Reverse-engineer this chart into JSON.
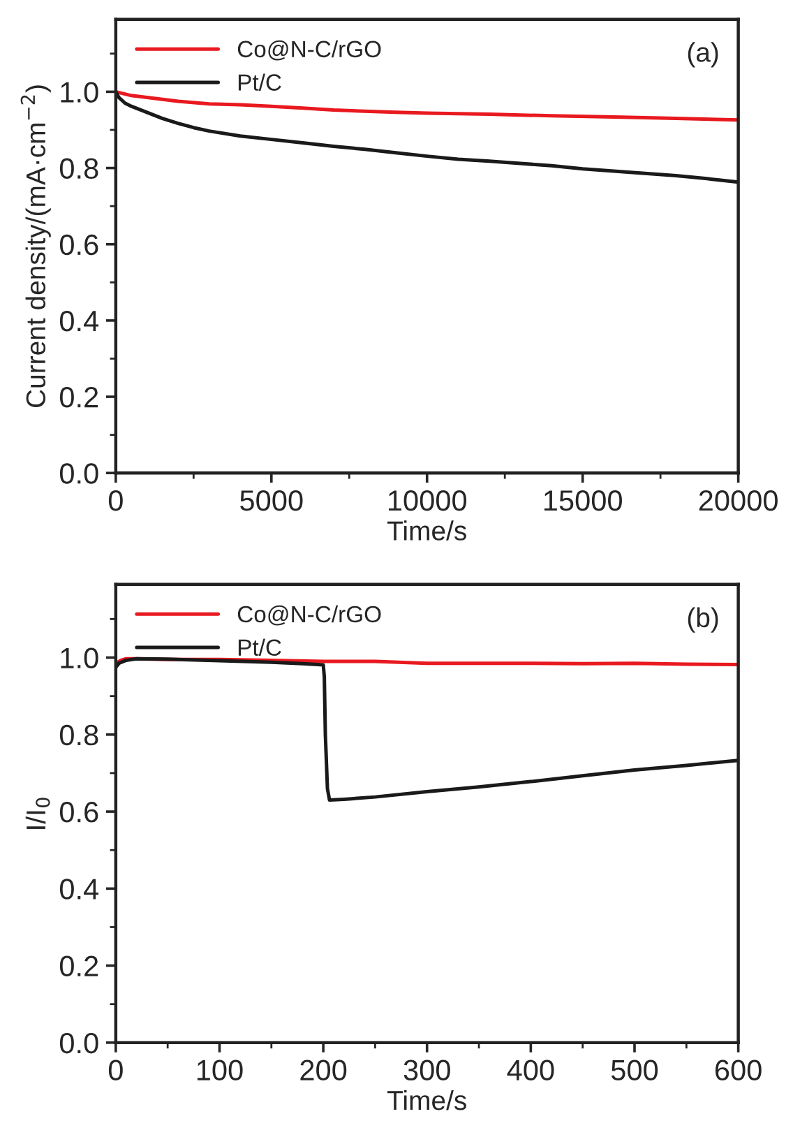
{
  "chart_data": [
    {
      "type": "line",
      "xlabel": "Time/s",
      "ylabel": "Current density/(mA·cm$^{−2}$)",
      "annotations": [
        "(a)"
      ],
      "legend": "top left",
      "xlim": [
        0,
        20000
      ],
      "ylim": [
        0,
        1.19
      ],
      "xticks": [
        0,
        5000,
        10000,
        15000,
        20000
      ],
      "yticks": [
        {
          "value": 0,
          "label": "0.0"
        },
        {
          "value": 0.2,
          "label": "0.2"
        },
        {
          "value": 0.4,
          "label": "0.4"
        },
        {
          "value": 0.6,
          "label": "0.6"
        },
        {
          "value": 0.8,
          "label": "0.8"
        },
        {
          "value": 1,
          "label": "1.0"
        }
      ],
      "grid": false,
      "series": [
        {
          "name": "Co@N-C/rGO",
          "color": "#e8191f",
          "x": [
            0,
            500,
            1000,
            2000,
            3000,
            4000,
            5000,
            6000,
            7000,
            8000,
            9000,
            10000,
            12000,
            14000,
            16000,
            18000,
            20000
          ],
          "values": [
            1.0,
            0.99,
            0.985,
            0.975,
            0.968,
            0.966,
            0.962,
            0.957,
            0.952,
            0.949,
            0.946,
            0.944,
            0.941,
            0.937,
            0.934,
            0.93,
            0.926
          ]
        },
        {
          "name": "Pt/C",
          "color": "#1a1a1a",
          "x": [
            0,
            100,
            300,
            500,
            1000,
            1500,
            2000,
            2500,
            3000,
            4000,
            5000,
            6000,
            7000,
            8000,
            9000,
            10000,
            11000,
            12000,
            13000,
            14000,
            15000,
            16000,
            17000,
            18000,
            19000,
            20000
          ],
          "values": [
            1.0,
            0.985,
            0.97,
            0.962,
            0.946,
            0.93,
            0.917,
            0.906,
            0.897,
            0.884,
            0.875,
            0.866,
            0.857,
            0.849,
            0.84,
            0.831,
            0.823,
            0.818,
            0.812,
            0.806,
            0.798,
            0.792,
            0.786,
            0.78,
            0.772,
            0.763
          ]
        }
      ]
    },
    {
      "type": "line",
      "xlabel": "Time/s",
      "ylabel": "I/I$_{0}$",
      "annotations": [
        "(b)"
      ],
      "legend": "top left",
      "xlim": [
        0,
        600
      ],
      "ylim": [
        0,
        1.19
      ],
      "xticks": [
        0,
        100,
        200,
        300,
        400,
        500,
        600
      ],
      "yticks": [
        {
          "value": 0,
          "label": "0.0"
        },
        {
          "value": 0.2,
          "label": "0.2"
        },
        {
          "value": 0.4,
          "label": "0.4"
        },
        {
          "value": 0.6,
          "label": "0.6"
        },
        {
          "value": 0.8,
          "label": "0.8"
        },
        {
          "value": 1,
          "label": "1.0"
        }
      ],
      "grid": false,
      "series": [
        {
          "name": "Co@N-C/rGO",
          "color": "#e8191f",
          "x": [
            0,
            5,
            10,
            20,
            50,
            100,
            150,
            200,
            250,
            300,
            350,
            400,
            450,
            500,
            550,
            600
          ],
          "values": [
            0.985,
            0.993,
            0.997,
            0.997,
            0.995,
            0.995,
            0.993,
            0.99,
            0.99,
            0.985,
            0.985,
            0.985,
            0.984,
            0.985,
            0.983,
            0.982
          ]
        },
        {
          "name": "Pt/C",
          "color": "#1a1a1a",
          "x": [
            0,
            3,
            10,
            20,
            50,
            100,
            150,
            180,
            200,
            201,
            202,
            204,
            206,
            220,
            250,
            300,
            350,
            400,
            450,
            500,
            550,
            600
          ],
          "values": [
            0.975,
            0.985,
            0.993,
            0.997,
            0.996,
            0.992,
            0.988,
            0.984,
            0.981,
            0.95,
            0.8,
            0.66,
            0.63,
            0.632,
            0.638,
            0.652,
            0.664,
            0.678,
            0.693,
            0.708,
            0.72,
            0.733
          ]
        }
      ]
    }
  ]
}
